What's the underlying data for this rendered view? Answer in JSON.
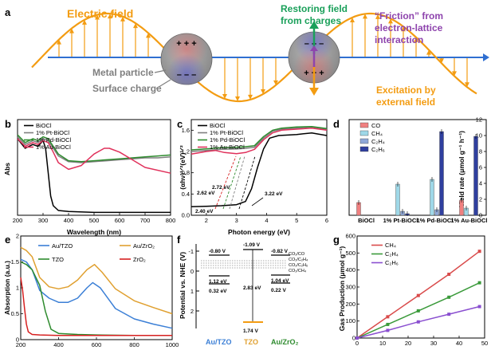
{
  "panel_a": {
    "letter": "a",
    "electric_field": "Electric field",
    "restoring_line1": "Restoring field",
    "restoring_line2": "from charges",
    "friction_line1": "“Friction” from",
    "friction_line2": "electron-lattice",
    "friction_line3": "interaction",
    "metal_particle": "Metal particle",
    "surface_charge": "Surface charge",
    "excitation_line1": "Excitation by",
    "excitation_line2": "external field",
    "plus": "+ + +",
    "minus": "– – –",
    "colors": {
      "field": "#f39c12",
      "axis": "#2f6fd1",
      "restoring": "#1aa05a",
      "friction": "#8e44ad",
      "label": "#7f7f7f"
    }
  },
  "panel_letters": {
    "b": "b",
    "c": "c",
    "d": "d",
    "e": "e",
    "f": "f",
    "g": "g"
  },
  "chart_data": [
    {
      "panel": "b",
      "type": "line",
      "xlabel": "Wavelength (nm)",
      "ylabel": "Abs",
      "xlim": [
        200,
        800
      ],
      "xticks": [
        200,
        300,
        400,
        500,
        600,
        700,
        800
      ],
      "series": [
        {
          "name": "BiOCl",
          "color": "#000000",
          "x": [
            200,
            230,
            260,
            280,
            300,
            310,
            320,
            330,
            340,
            360,
            400,
            500,
            600,
            700,
            800
          ],
          "y": [
            0.8,
            0.7,
            0.74,
            0.72,
            0.78,
            0.7,
            0.45,
            0.2,
            0.1,
            0.05,
            0.04,
            0.03,
            0.03,
            0.03,
            0.03
          ]
        },
        {
          "name": "1% Pt-BiOCl",
          "color": "#7f7f7f",
          "x": [
            200,
            230,
            260,
            280,
            300,
            320,
            340,
            360,
            400,
            450,
            500,
            550,
            600,
            650,
            700,
            750,
            800
          ],
          "y": [
            0.82,
            0.74,
            0.78,
            0.76,
            0.8,
            0.78,
            0.7,
            0.62,
            0.56,
            0.55,
            0.56,
            0.57,
            0.58,
            0.59,
            0.6,
            0.6,
            0.61
          ]
        },
        {
          "name": "1% Pd-BiOCl",
          "color": "#2e8b2e",
          "x": [
            200,
            230,
            260,
            280,
            300,
            320,
            340,
            360,
            400,
            450,
            500,
            550,
            600,
            650,
            700,
            750,
            800
          ],
          "y": [
            0.84,
            0.76,
            0.8,
            0.78,
            0.82,
            0.8,
            0.72,
            0.64,
            0.57,
            0.56,
            0.57,
            0.58,
            0.59,
            0.6,
            0.61,
            0.62,
            0.63
          ]
        },
        {
          "name": "1% Au-BiOCl",
          "color": "#e0315b",
          "x": [
            200,
            230,
            260,
            280,
            300,
            320,
            340,
            360,
            400,
            450,
            500,
            540,
            560,
            600,
            650,
            700,
            800
          ],
          "y": [
            0.8,
            0.72,
            0.76,
            0.74,
            0.78,
            0.76,
            0.66,
            0.55,
            0.48,
            0.52,
            0.64,
            0.7,
            0.7,
            0.66,
            0.58,
            0.5,
            0.44
          ]
        }
      ]
    },
    {
      "panel": "c",
      "type": "line",
      "xlabel": "Photon energy (eV)",
      "ylabel": "(αhν)¹ᐟ²(eV)¹ᐟ²",
      "xlim": [
        1.5,
        6
      ],
      "ylim": [
        0,
        1.8
      ],
      "xticks": [
        2,
        3,
        4,
        5,
        6
      ],
      "yticks": [
        0.0,
        0.4,
        0.8,
        1.2,
        1.6
      ],
      "annotations": [
        "2.62 eV",
        "2.72 eV",
        "2.40 eV",
        "3.22 eV"
      ],
      "series": [
        {
          "name": "BiOCl",
          "color": "#000000",
          "x": [
            1.5,
            2.0,
            2.5,
            3.0,
            3.3,
            3.5,
            3.7,
            3.9,
            4.1,
            4.4,
            5.0,
            5.5,
            6.0
          ],
          "y": [
            0.16,
            0.17,
            0.18,
            0.2,
            0.26,
            0.5,
            0.9,
            1.25,
            1.45,
            1.5,
            1.52,
            1.55,
            1.5
          ]
        },
        {
          "name": "1% Pt-BiOCl",
          "color": "#7f7f7f",
          "x": [
            1.5,
            2.0,
            2.5,
            3.0,
            3.3,
            3.6,
            3.9,
            4.2,
            4.5,
            5.0,
            5.5,
            6.0
          ],
          "y": [
            1.2,
            1.22,
            1.24,
            1.25,
            1.26,
            1.28,
            1.45,
            1.58,
            1.62,
            1.64,
            1.66,
            1.62
          ]
        },
        {
          "name": "1% Pd-BiOCl",
          "color": "#2e8b2e",
          "x": [
            1.5,
            2.0,
            2.5,
            3.0,
            3.3,
            3.6,
            3.9,
            4.2,
            4.5,
            5.0,
            5.5,
            6.0
          ],
          "y": [
            1.23,
            1.25,
            1.27,
            1.28,
            1.29,
            1.31,
            1.48,
            1.6,
            1.64,
            1.66,
            1.67,
            1.63
          ]
        },
        {
          "name": "1% Au-BiOCl",
          "color": "#e0315b",
          "x": [
            1.5,
            2.0,
            2.3,
            2.6,
            3.0,
            3.3,
            3.6,
            3.9,
            4.2,
            4.5,
            5.0,
            5.5,
            6.0
          ],
          "y": [
            1.15,
            1.2,
            1.22,
            1.18,
            1.16,
            1.18,
            1.24,
            1.42,
            1.55,
            1.6,
            1.62,
            1.64,
            1.6
          ]
        }
      ]
    },
    {
      "panel": "d",
      "type": "bar",
      "ylabel": "Yield rate (μmol g⁻¹ h⁻¹)",
      "ylim": [
        0,
        12
      ],
      "yticks": [
        0,
        2,
        4,
        6,
        8,
        10,
        12
      ],
      "categories": [
        "BiOCl",
        "1% Pt-BiOCl",
        "1% Pd-BiOCl",
        "1% Au-BiOCl"
      ],
      "series": [
        {
          "name": "CO",
          "color": "#f08080",
          "values": [
            1.6,
            0,
            0,
            1.9
          ]
        },
        {
          "name": "CH₄",
          "color": "#9fd8e8",
          "values": [
            0,
            3.9,
            4.5,
            0.9
          ]
        },
        {
          "name": "C₂H₄",
          "color": "#8fa8d8",
          "values": [
            0,
            0.5,
            0.7,
            0
          ]
        },
        {
          "name": "C₂H₆",
          "color": "#2f3f9f",
          "values": [
            0,
            0.2,
            10.5,
            9.9
          ]
        }
      ]
    },
    {
      "panel": "e",
      "type": "line",
      "xlabel": "",
      "ylabel": "Absorption (a.u.)",
      "xlim": [
        200,
        1000
      ],
      "ylim": [
        0,
        2
      ],
      "xticks": [
        200,
        400,
        600,
        800,
        1000
      ],
      "yticks": [
        0,
        0.5,
        1,
        1.5,
        2
      ],
      "series": [
        {
          "name": "Au/TZO",
          "color": "#3b7fd6",
          "x": [
            200,
            230,
            260,
            300,
            350,
            400,
            450,
            500,
            550,
            580,
            620,
            700,
            800,
            900,
            1000
          ],
          "y": [
            1.55,
            1.5,
            1.35,
            0.95,
            0.8,
            0.72,
            0.72,
            0.8,
            1.0,
            1.1,
            1.0,
            0.6,
            0.4,
            0.3,
            0.22
          ]
        },
        {
          "name": "Au/ZrO₂",
          "color": "#e0a030",
          "x": [
            200,
            230,
            260,
            300,
            350,
            400,
            450,
            500,
            550,
            590,
            630,
            700,
            800,
            900,
            1000
          ],
          "y": [
            1.78,
            1.72,
            1.6,
            1.2,
            1.02,
            0.98,
            1.02,
            1.15,
            1.35,
            1.45,
            1.3,
            0.98,
            0.75,
            0.62,
            0.5
          ]
        },
        {
          "name": "TZO",
          "color": "#2e8b2e",
          "x": [
            200,
            230,
            260,
            300,
            330,
            360,
            400,
            500,
            600,
            800,
            1000
          ],
          "y": [
            1.5,
            1.45,
            1.35,
            1.05,
            0.55,
            0.2,
            0.12,
            0.1,
            0.09,
            0.08,
            0.08
          ]
        },
        {
          "name": "ZrO₂",
          "color": "#d62020",
          "x": [
            200,
            210,
            220,
            230,
            240,
            260,
            300,
            400,
            600,
            800,
            1000
          ],
          "y": [
            1.2,
            0.95,
            0.6,
            0.3,
            0.15,
            0.1,
            0.09,
            0.08,
            0.08,
            0.08,
            0.08
          ]
        }
      ]
    },
    {
      "panel": "f",
      "type": "diagram",
      "ylabel": "Potential vs. NHE (V)",
      "yticks": [
        "-1",
        "0",
        "1",
        "2"
      ],
      "materials": [
        "Au/TZO",
        "TZO",
        "Au/ZrO₂"
      ],
      "material_colors": [
        "#3b7fd6",
        "#e0a030",
        "#2e8b2e"
      ],
      "levels": [
        "-0.80 V",
        "1.12 eV",
        "0.32 eV",
        "-1.09 V",
        "2.83 eV",
        "1.74 V",
        "-0.82 V",
        "1.04 eV",
        "0.22 V"
      ],
      "redox": [
        "CO₂/CO",
        "CO₂/C₂H₄",
        "CO₂/C₂H₆",
        "CO₂/CH₄"
      ]
    },
    {
      "panel": "g",
      "type": "line",
      "xlabel": "",
      "ylabel": "Gas Production (μmol g⁻¹)",
      "xlim": [
        0,
        50
      ],
      "ylim": [
        0,
        600
      ],
      "xticks": [
        0,
        10,
        20,
        30,
        40,
        50
      ],
      "yticks": [
        0,
        100,
        200,
        300,
        400,
        500,
        600
      ],
      "series": [
        {
          "name": "CH₄",
          "color": "#d94b4b",
          "x": [
            0,
            12,
            24,
            36,
            48
          ],
          "y": [
            0,
            125,
            250,
            375,
            510
          ]
        },
        {
          "name": "C₂H₄",
          "color": "#3a9a3a",
          "x": [
            0,
            12,
            24,
            36,
            48
          ],
          "y": [
            0,
            80,
            160,
            240,
            325
          ]
        },
        {
          "name": "C₂H₆",
          "color": "#8a4fd0",
          "x": [
            0,
            12,
            24,
            36,
            48
          ],
          "y": [
            0,
            45,
            95,
            140,
            185
          ]
        }
      ]
    }
  ]
}
